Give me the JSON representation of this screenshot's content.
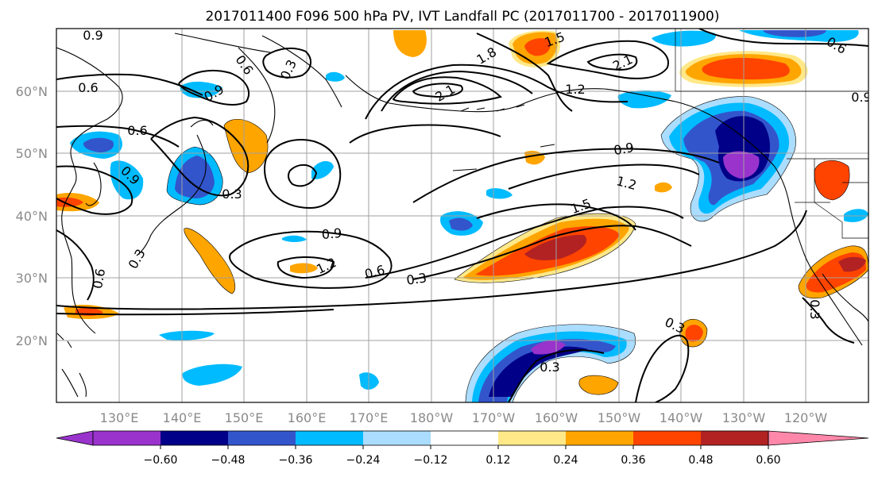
{
  "title": "2017011400 F096 500 hPa PV, IVT Landfall PC (2017011700 - 2017011900)",
  "lat_labels": [
    "60°N",
    "50°N",
    "40°N",
    "30°N",
    "20°N"
  ],
  "lon_labels": [
    "130°E",
    "140°E",
    "150°E",
    "160°E",
    "170°E",
    "180°W",
    "170°W",
    "160°W",
    "150°W",
    "140°W",
    "130°W",
    "120°W"
  ],
  "colorbar": {
    "tick_labels": [
      "−0.60",
      "−0.48",
      "−0.36",
      "−0.24",
      "−0.12",
      "0.12",
      "0.24",
      "0.36",
      "0.48",
      "0.60"
    ],
    "colors": [
      "#9933cc",
      "#000088",
      "#3355cc",
      "#00bbff",
      "#aaddff",
      "#ffffff",
      "#ffe888",
      "#ffa500",
      "#ff4400",
      "#b22222",
      "#ff88aa"
    ]
  },
  "contour_labels": [
    "0.9",
    "0.6",
    "0.3",
    "0.6",
    "0.9",
    "0.3",
    "0.6",
    "0.9",
    "0.3",
    "1.5",
    "1.8",
    "2.1",
    "2.1",
    "1.2",
    "0.6",
    "0.9",
    "1.2",
    "1.5",
    "0.9",
    "1.2",
    "0.6",
    "0.3",
    "0.6",
    "0.3",
    "0.3",
    "0.3",
    "0.9"
  ]
}
